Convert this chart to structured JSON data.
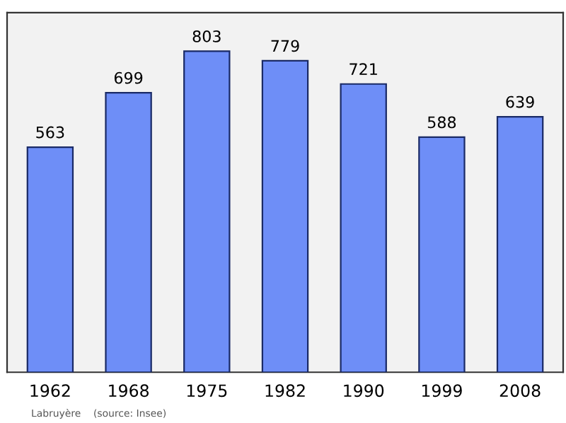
{
  "chart_data": {
    "type": "bar",
    "categories": [
      "1962",
      "1968",
      "1975",
      "1982",
      "1990",
      "1999",
      "2008"
    ],
    "values": [
      563,
      699,
      803,
      779,
      721,
      588,
      639
    ],
    "color": "#6e8ef7",
    "data_labels": true,
    "grid": false,
    "legend": false,
    "annotations": [
      "Labruyère    (source: Insee)"
    ]
  }
}
